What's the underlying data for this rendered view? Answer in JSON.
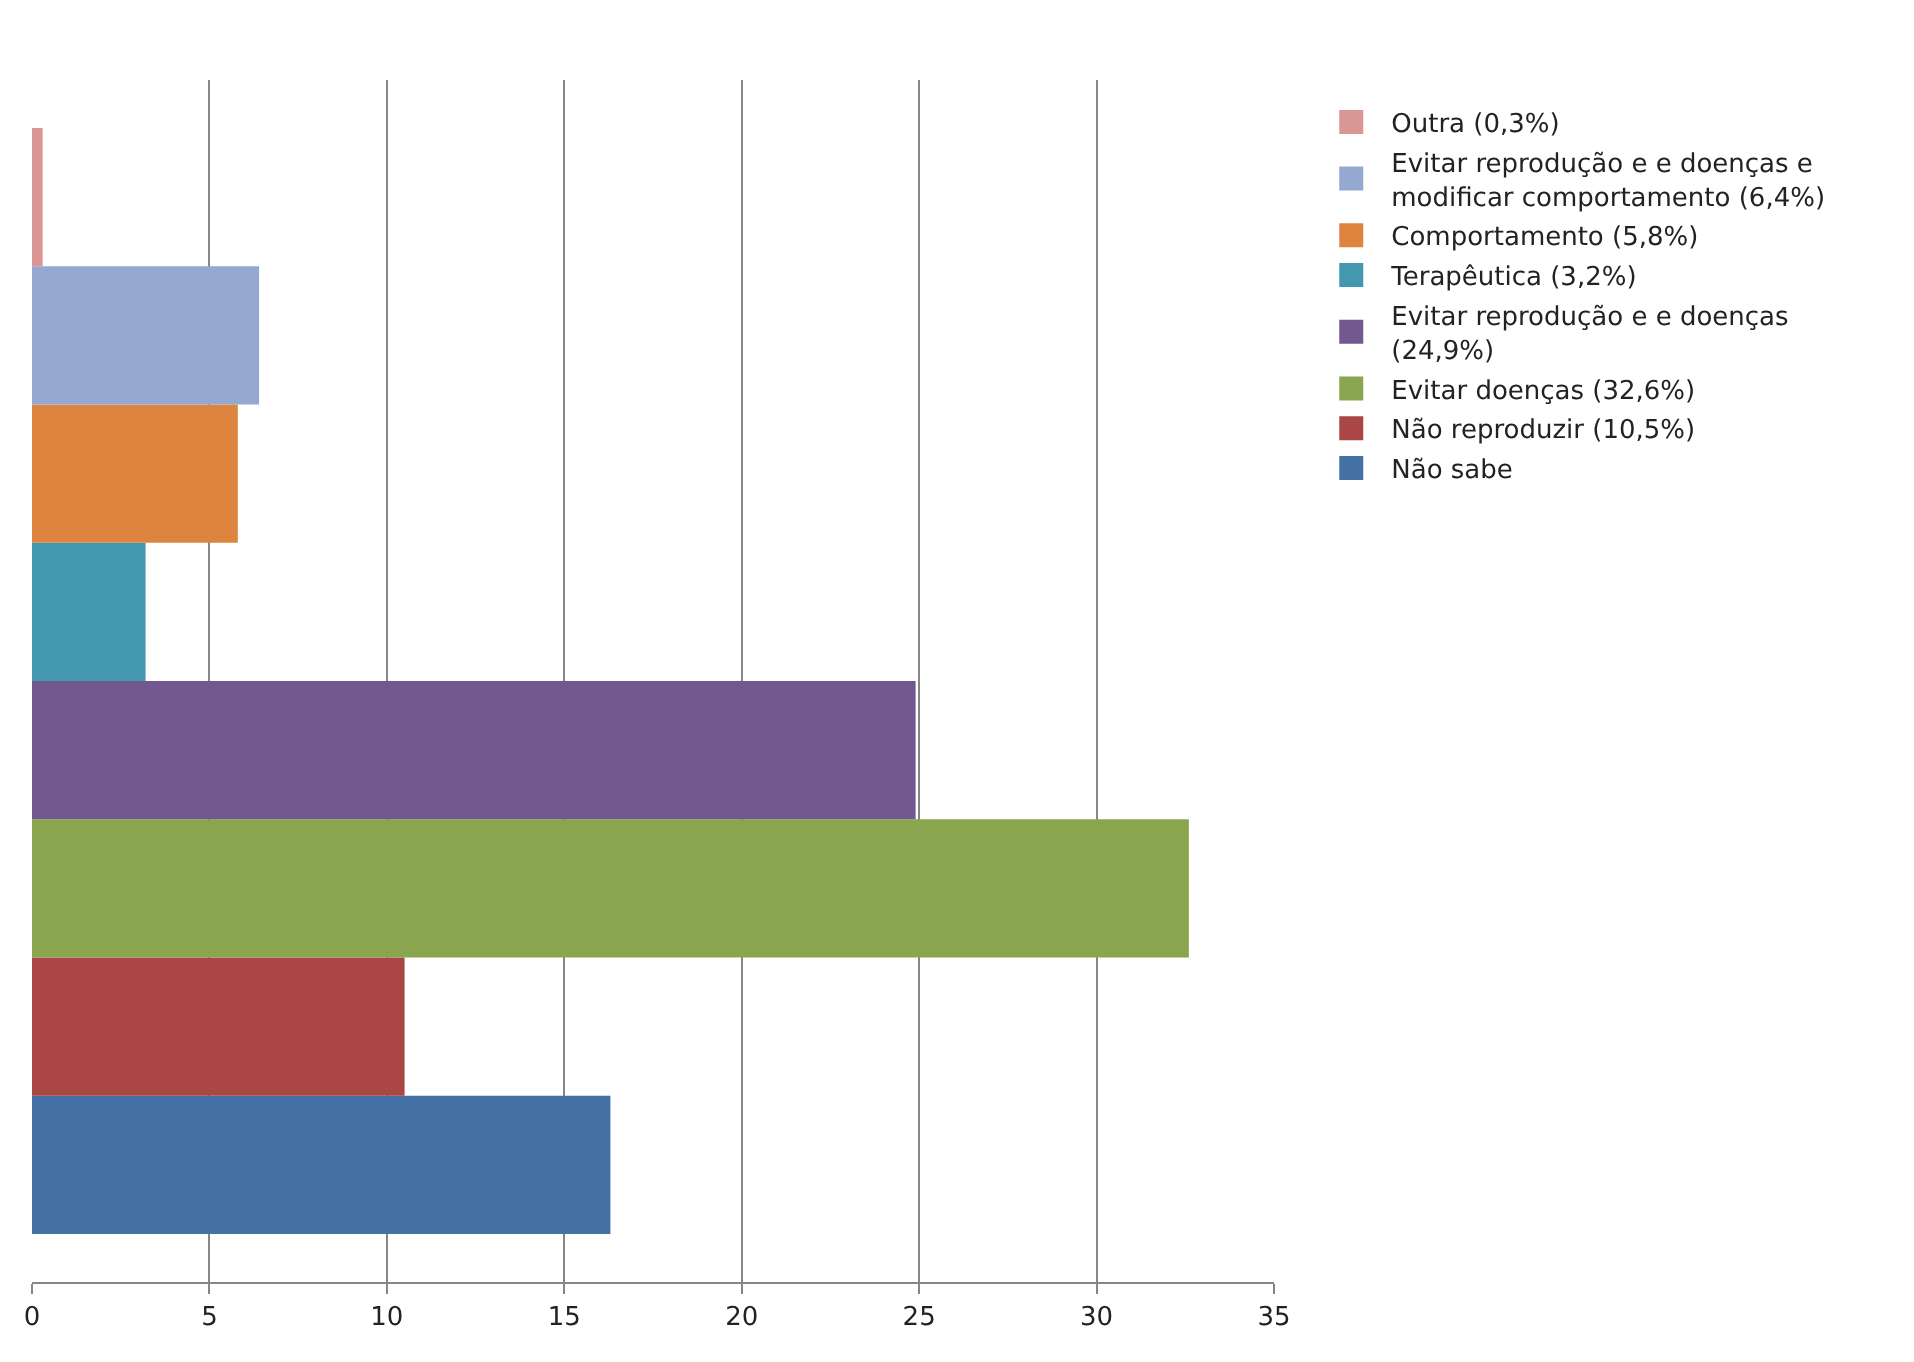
{
  "chart_data": {
    "type": "bar",
    "orientation": "horizontal",
    "categories": [
      null
    ],
    "series": [
      {
        "name": "Outra (0,3%)",
        "color": "#d99694",
        "values": [
          0.3
        ]
      },
      {
        "name": "Evitar reprodução e e doenças e modificar comportamento (6,4%)",
        "color": "#95a9d0",
        "values": [
          6.4
        ]
      },
      {
        "name": "Comportamento (5,8%)",
        "color": "#dd853e",
        "values": [
          5.8
        ]
      },
      {
        "name": "Terapêutica (3,2%)",
        "color": "#4298ae",
        "values": [
          3.2
        ]
      },
      {
        "name": "Evitar reprodução e e doenças (24,9%)",
        "color": "#71588f",
        "values": [
          24.9
        ]
      },
      {
        "name": "Evitar doenças (32,6%)",
        "color": "#89a54e",
        "values": [
          32.6
        ]
      },
      {
        "name": "Não reproduzir (10,5%)",
        "color": "#aa4644",
        "values": [
          10.5
        ]
      },
      {
        "name": "Não sabe",
        "color": "#4471a6",
        "values": [
          16.3
        ]
      }
    ],
    "xlim": [
      0,
      35
    ],
    "xticks": [
      0,
      5,
      10,
      15,
      20,
      25,
      30,
      35
    ],
    "grid": "x",
    "legend": "right"
  }
}
